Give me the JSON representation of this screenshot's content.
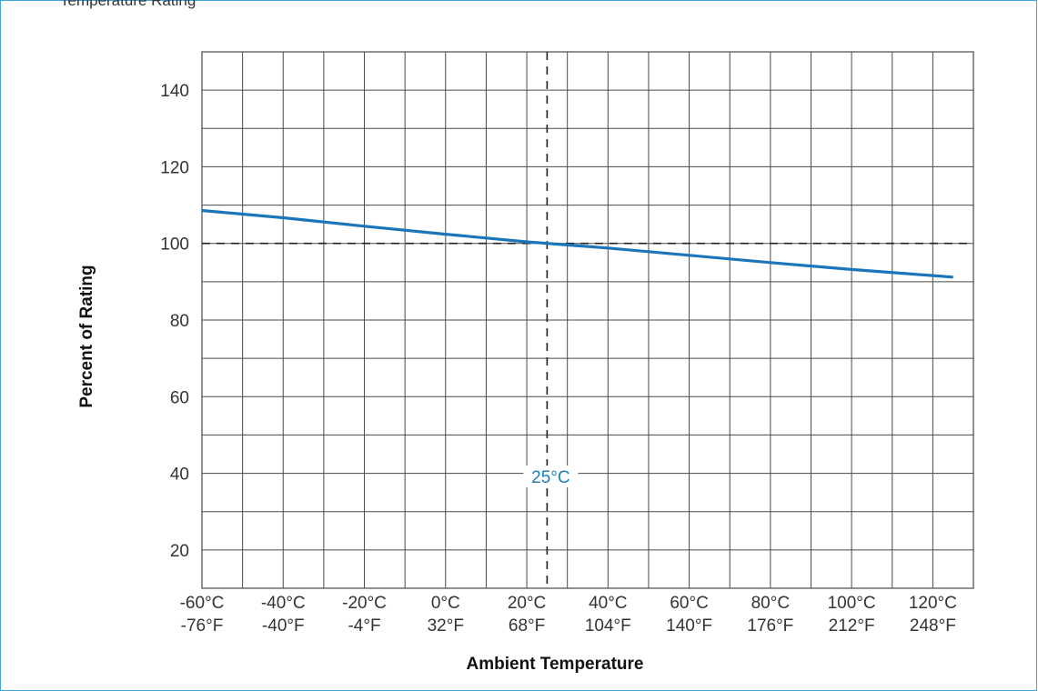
{
  "caption": "Temperature Rating",
  "chart_data": {
    "type": "line",
    "title": "",
    "xlabel": "Ambient Temperature",
    "ylabel": "Percent of Rating",
    "xlim": [
      -60,
      130
    ],
    "ylim": [
      10,
      150
    ],
    "grid": true,
    "x_ticks": [
      {
        "value": -60,
        "c": "-60°C",
        "f": "-76°F"
      },
      {
        "value": -40,
        "c": "-40°C",
        "f": "-40°F"
      },
      {
        "value": -20,
        "c": "-20°C",
        "f": "-4°F"
      },
      {
        "value": 0,
        "c": "0°C",
        "f": "32°F"
      },
      {
        "value": 20,
        "c": "20°C",
        "f": "68°F"
      },
      {
        "value": 40,
        "c": "40°C",
        "f": "104°F"
      },
      {
        "value": 60,
        "c": "60°C",
        "f": "140°F"
      },
      {
        "value": 80,
        "c": "80°C",
        "f": "176°F"
      },
      {
        "value": 100,
        "c": "100°C",
        "f": "212°F"
      },
      {
        "value": 120,
        "c": "120°C",
        "f": "248°F"
      }
    ],
    "y_ticks": [
      20,
      40,
      60,
      80,
      100,
      120,
      140
    ],
    "series": [
      {
        "color": "#1a75bb",
        "x": [
          -60,
          -40,
          -20,
          0,
          20,
          25,
          40,
          60,
          80,
          100,
          125
        ],
        "y": [
          108.6,
          106.7,
          104.5,
          102.4,
          100.4,
          100.0,
          98.8,
          96.9,
          95.0,
          93.2,
          91.2
        ]
      }
    ],
    "reference_lines": [
      {
        "axis": "x",
        "value": 25,
        "label": "25°C"
      },
      {
        "axis": "y",
        "value": 100
      }
    ]
  }
}
